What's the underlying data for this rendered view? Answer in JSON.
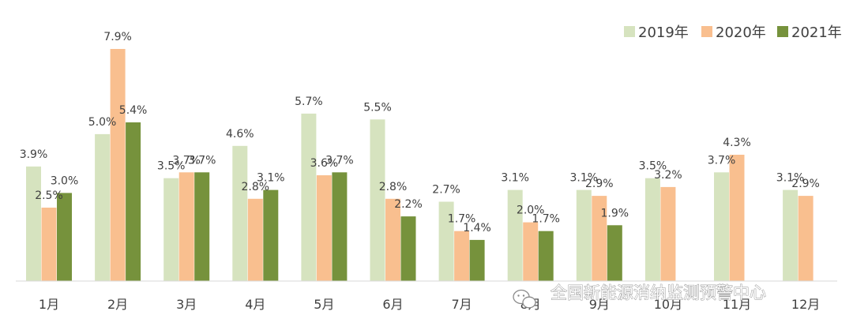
{
  "chart_data": {
    "type": "bar",
    "categories": [
      "1月",
      "2月",
      "3月",
      "4月",
      "5月",
      "6月",
      "7月",
      "8月",
      "9月",
      "10月",
      "11月",
      "12月"
    ],
    "series": [
      {
        "name": "2019年",
        "color": "#d6e3bf",
        "values": [
          3.9,
          5.0,
          3.5,
          4.6,
          5.7,
          5.5,
          2.7,
          3.1,
          3.1,
          3.5,
          3.7,
          3.1
        ],
        "labels": [
          "3.9%",
          "5.0%",
          "3.5%",
          "4.6%",
          "5.7%",
          "5.5%",
          "2.7%",
          "3.1%",
          "3.1%",
          "3.5%",
          "3.7%",
          "3.1%"
        ]
      },
      {
        "name": "2020年",
        "color": "#f9bf8f",
        "values": [
          2.5,
          7.9,
          3.7,
          2.8,
          3.6,
          2.8,
          1.7,
          2.0,
          2.9,
          3.2,
          4.3,
          2.9
        ],
        "labels": [
          "2.5%",
          "7.9%",
          "3.7%",
          "2.8%",
          "3.6%",
          "2.8%",
          "1.7%",
          "2.0%",
          "2.9%",
          "3.2%",
          "4.3%",
          "2.9%"
        ]
      },
      {
        "name": "2021年",
        "color": "#76923c",
        "values": [
          3.0,
          5.4,
          3.7,
          3.1,
          3.7,
          2.2,
          1.4,
          1.7,
          1.9,
          null,
          null,
          null
        ],
        "labels": [
          "3.0%",
          "5.4%",
          "3.7%",
          "3.1%",
          "3.7%",
          "2.2%",
          "1.4%",
          "1.7%",
          "1.9%",
          null,
          null,
          null
        ]
      }
    ],
    "ylim": [
      0,
      7.9
    ],
    "legend_position": "top-right",
    "grid": false
  },
  "watermark": {
    "icon": "wechat-icon",
    "text": "全国新能源消纳监测预警中心"
  }
}
